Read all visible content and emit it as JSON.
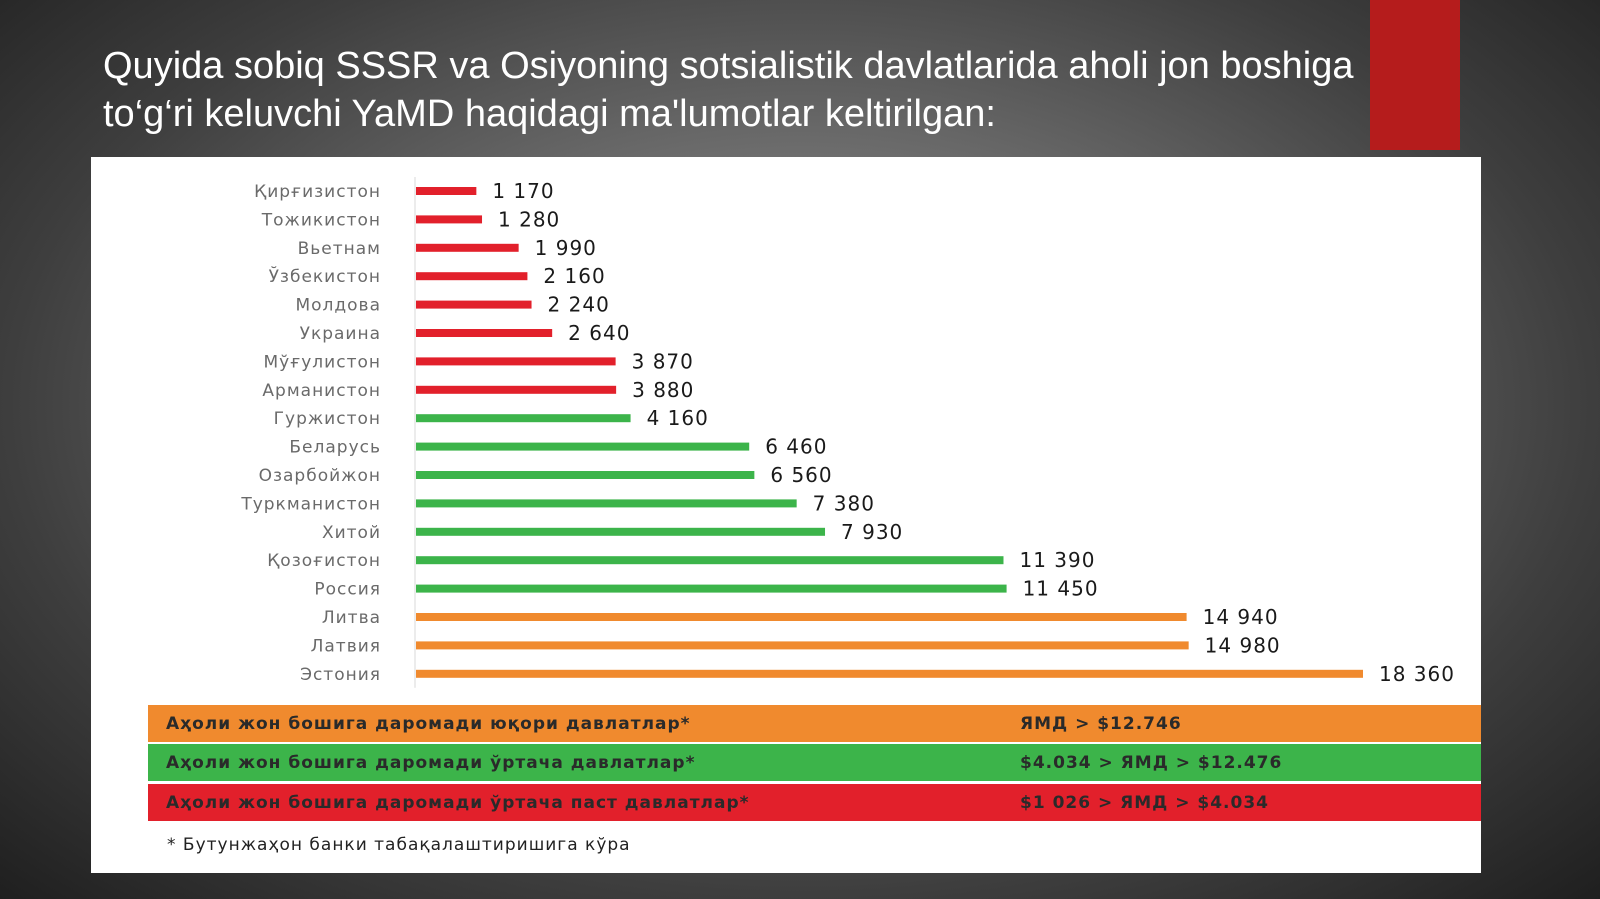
{
  "slide": {
    "title": "Quyida sobiq SSSR va Osiyoning sotsialistik davlatlarida aholi jon boshiga to‘g‘ri keluvchi YaMD haqidagi ma'lumotlar keltirilgan:"
  },
  "chart_data": {
    "type": "bar",
    "orientation": "horizontal",
    "categories": [
      "Қирғизистон",
      "Тожикистон",
      "Вьетнам",
      "Ўзбекистон",
      "Молдова",
      "Украина",
      "Мўғулистон",
      "Арманистон",
      "Гуржистон",
      "Беларусь",
      "Озарбойжон",
      "Туркманистон",
      "Хитой",
      "Қозоғистон",
      "Россия",
      "Литва",
      "Латвия",
      "Эстония"
    ],
    "values": [
      1170,
      1280,
      1990,
      2160,
      2240,
      2640,
      3870,
      3880,
      4160,
      6460,
      6560,
      7380,
      7930,
      11390,
      11450,
      14940,
      14980,
      18360
    ],
    "value_labels": [
      "1 170",
      "1 280",
      "1 990",
      "2 160",
      "2 240",
      "2 640",
      "3 870",
      "3 880",
      "4 160",
      "6 460",
      "6 560",
      "7 380",
      "7 930",
      "11 390",
      "11 450",
      "14 940",
      "14 980",
      "18 360"
    ],
    "bar_groups": [
      "low",
      "low",
      "low",
      "low",
      "low",
      "low",
      "low",
      "low",
      "mid",
      "mid",
      "mid",
      "mid",
      "mid",
      "mid",
      "mid",
      "high",
      "high",
      "high"
    ],
    "group_colors": {
      "low": "#e2202b",
      "mid": "#3cb44a",
      "high": "#f08a2e"
    },
    "title": "",
    "xlabel": "",
    "ylabel": "",
    "xlim": [
      0,
      18360
    ]
  },
  "legend": [
    {
      "label": "Аҳоли жон бошига даромади юқори давлатлар*",
      "range": "ЯМД > $12.746",
      "color": "#f08a2e"
    },
    {
      "label": "Аҳоли жон бошига даромади ўртача давлатлар*",
      "range": "$4.034 > ЯМД > $12.476",
      "color": "#3cb44a"
    },
    {
      "label": "Аҳоли жон бошига даромади ўртача паст давлатлар*",
      "range": "$1 026 > ЯМД > $4.034",
      "color": "#e2202b"
    }
  ],
  "footnote": "* Бутунжаҳон банки табақалаштиришига кўра",
  "colors": {
    "accent": "#b51c1c"
  }
}
